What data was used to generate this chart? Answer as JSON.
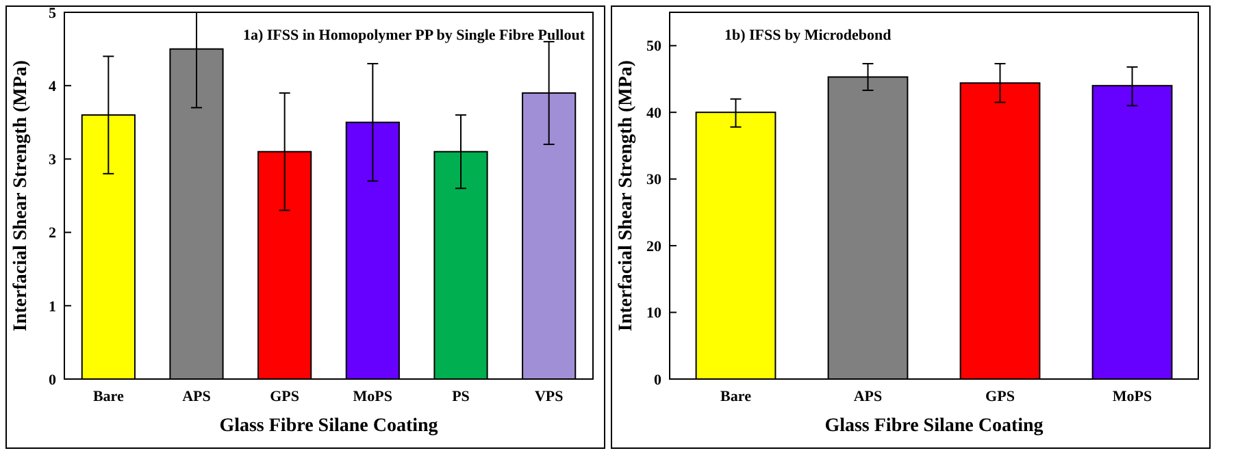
{
  "chart_data": [
    {
      "type": "bar",
      "title": "1a) IFSS in Homopolymer PP by Single Fibre Pullout",
      "xlabel": "Glass Fibre Silane Coating",
      "ylabel": "Interfacial Shear Strength (MPa)",
      "categories": [
        "Bare",
        "APS",
        "GPS",
        "MoPS",
        "PS",
        "VPS"
      ],
      "values": [
        3.6,
        4.5,
        3.1,
        3.5,
        3.1,
        3.9
      ],
      "colors": [
        "#ffff00",
        "#808080",
        "#ff0000",
        "#6600ff",
        "#00b050",
        "#a08fd6"
      ],
      "errors": [
        [
          2.8,
          4.4
        ],
        [
          3.7,
          5.0
        ],
        [
          2.3,
          3.9
        ],
        [
          2.7,
          4.3
        ],
        [
          2.6,
          3.6
        ],
        [
          3.2,
          4.6
        ]
      ],
      "ylim": [
        0,
        5
      ],
      "yticks": [
        0,
        1,
        2,
        3,
        4,
        5
      ]
    },
    {
      "type": "bar",
      "title": "1b) IFSS by Microdebond",
      "xlabel": "Glass Fibre Silane Coating",
      "ylabel": "Interfacial Shear Strength (MPa)",
      "categories": [
        "Bare",
        "APS",
        "GPS",
        "MoPS"
      ],
      "values": [
        40,
        45.3,
        44.4,
        44
      ],
      "colors": [
        "#ffff00",
        "#808080",
        "#ff0000",
        "#6600ff"
      ],
      "errors": [
        [
          37.8,
          42
        ],
        [
          43.3,
          47.3
        ],
        [
          41.5,
          47.3
        ],
        [
          41,
          46.8
        ]
      ],
      "ylim": [
        0,
        55
      ],
      "yticks": [
        0,
        10,
        20,
        30,
        40,
        50
      ]
    }
  ]
}
